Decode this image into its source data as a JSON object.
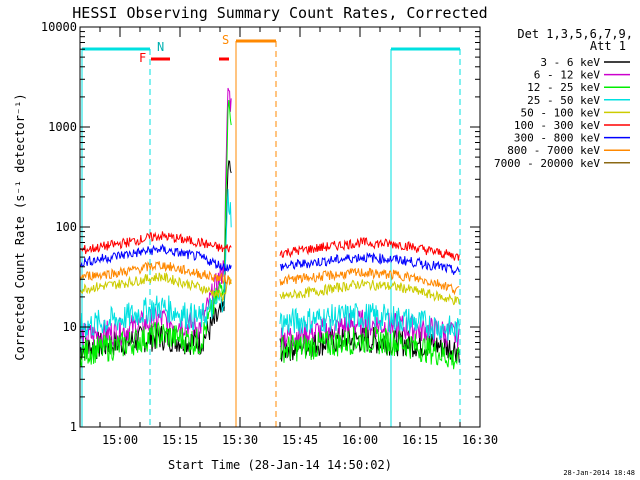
{
  "chart_data": {
    "type": "line",
    "title": "HESSI Observing Summary Count Rates, Corrected",
    "xlabel": "Start Time (28-Jan-14 14:50:02)",
    "ylabel": "Corrected Count Rate (s⁻¹ detector⁻¹)",
    "x_unit": "minutes",
    "xlim": [
      "14:50",
      "16:30"
    ],
    "ylim": [
      1,
      10000
    ],
    "yscale": "log",
    "x_ticks": [
      "15:00",
      "15:15",
      "15:30",
      "15:45",
      "16:00",
      "16:15",
      "16:30"
    ],
    "y_ticks": [
      "1",
      "10",
      "100",
      "1000",
      "10000"
    ],
    "legend_title": [
      "Det 1,3,5,6,7,9,",
      "Att 1"
    ],
    "legend_position": "right",
    "footer_date": "28-Jan-2014 18:48",
    "flag_labels": {
      "night": "N",
      "saa": "S",
      "flare": "F"
    },
    "data_gaps": [
      [
        "15:28",
        "15:40"
      ]
    ],
    "series": [
      {
        "name": "3 - 6 keV",
        "color": "#000000",
        "x": [
          "14:50",
          "15:00",
          "15:10",
          "15:20",
          "15:26",
          "15:27",
          "15:28",
          "15:40",
          "15:50",
          "16:00",
          "16:10",
          "16:20",
          "16:25"
        ],
        "y": [
          6,
          7,
          8,
          7,
          15,
          400,
          350,
          6,
          7,
          7.5,
          7,
          6.5,
          6
        ]
      },
      {
        "name": "6 - 12 keV",
        "color": "#cc00cc",
        "x": [
          "14:50",
          "15:00",
          "15:10",
          "15:20",
          "15:26",
          "15:27",
          "15:28",
          "15:40",
          "15:50",
          "16:00",
          "16:10",
          "16:20",
          "16:25"
        ],
        "y": [
          8,
          9,
          12,
          10,
          40,
          2500,
          1500,
          8,
          9,
          11,
          10,
          9,
          8
        ]
      },
      {
        "name": "12 - 25 keV",
        "color": "#00ee00",
        "x": [
          "14:50",
          "15:00",
          "15:10",
          "15:20",
          "15:26",
          "15:27",
          "15:28",
          "15:40",
          "15:50",
          "16:00",
          "16:10",
          "16:20",
          "16:25"
        ],
        "y": [
          5.5,
          6.5,
          8.5,
          7,
          30,
          1800,
          900,
          6,
          6.5,
          7.5,
          7,
          5.5,
          4.5
        ]
      },
      {
        "name": "25 - 50 keV",
        "color": "#00e0e0",
        "x": [
          "14:50",
          "15:00",
          "15:10",
          "15:20",
          "15:26",
          "15:27",
          "15:28",
          "15:40",
          "15:50",
          "16:00",
          "16:10",
          "16:20",
          "16:25"
        ],
        "y": [
          10,
          12,
          16,
          12,
          20,
          200,
          120,
          11,
          12,
          13,
          12,
          10,
          9
        ]
      },
      {
        "name": "50 - 100 keV",
        "color": "#cccc00",
        "x": [
          "14:50",
          "15:00",
          "15:10",
          "15:20",
          "15:26",
          "15:27",
          "15:28",
          "15:40",
          "15:50",
          "16:00",
          "16:10",
          "16:20",
          "16:25"
        ],
        "y": [
          24,
          27,
          32,
          25,
          20,
          30,
          25,
          20,
          23,
          27,
          25,
          20,
          18
        ]
      },
      {
        "name": "100 - 300 keV",
        "color": "#ff0000",
        "x": [
          "14:50",
          "15:00",
          "15:10",
          "15:20",
          "15:26",
          "15:27",
          "15:28",
          "15:40",
          "15:50",
          "16:00",
          "16:10",
          "16:20",
          "16:25"
        ],
        "y": [
          58,
          68,
          82,
          70,
          60,
          62,
          60,
          55,
          62,
          70,
          67,
          55,
          50
        ]
      },
      {
        "name": "300 - 800 keV",
        "color": "#0000ff",
        "x": [
          "14:50",
          "15:00",
          "15:10",
          "15:20",
          "15:26",
          "15:27",
          "15:28",
          "15:40",
          "15:50",
          "16:00",
          "16:10",
          "16:20",
          "16:25"
        ],
        "y": [
          44,
          52,
          60,
          50,
          40,
          40,
          38,
          40,
          45,
          50,
          47,
          40,
          35
        ]
      },
      {
        "name": "800 - 7000 keV",
        "color": "#ff8800",
        "x": [
          "14:50",
          "15:00",
          "15:10",
          "15:20",
          "15:26",
          "15:27",
          "15:28",
          "15:40",
          "15:50",
          "16:00",
          "16:10",
          "16:20",
          "16:25"
        ],
        "y": [
          32,
          35,
          42,
          34,
          30,
          30,
          28,
          29,
          32,
          35,
          33,
          27,
          23
        ]
      },
      {
        "name": "7000 - 20000 keV",
        "color": "#8b6914",
        "x": [],
        "y": []
      }
    ]
  }
}
